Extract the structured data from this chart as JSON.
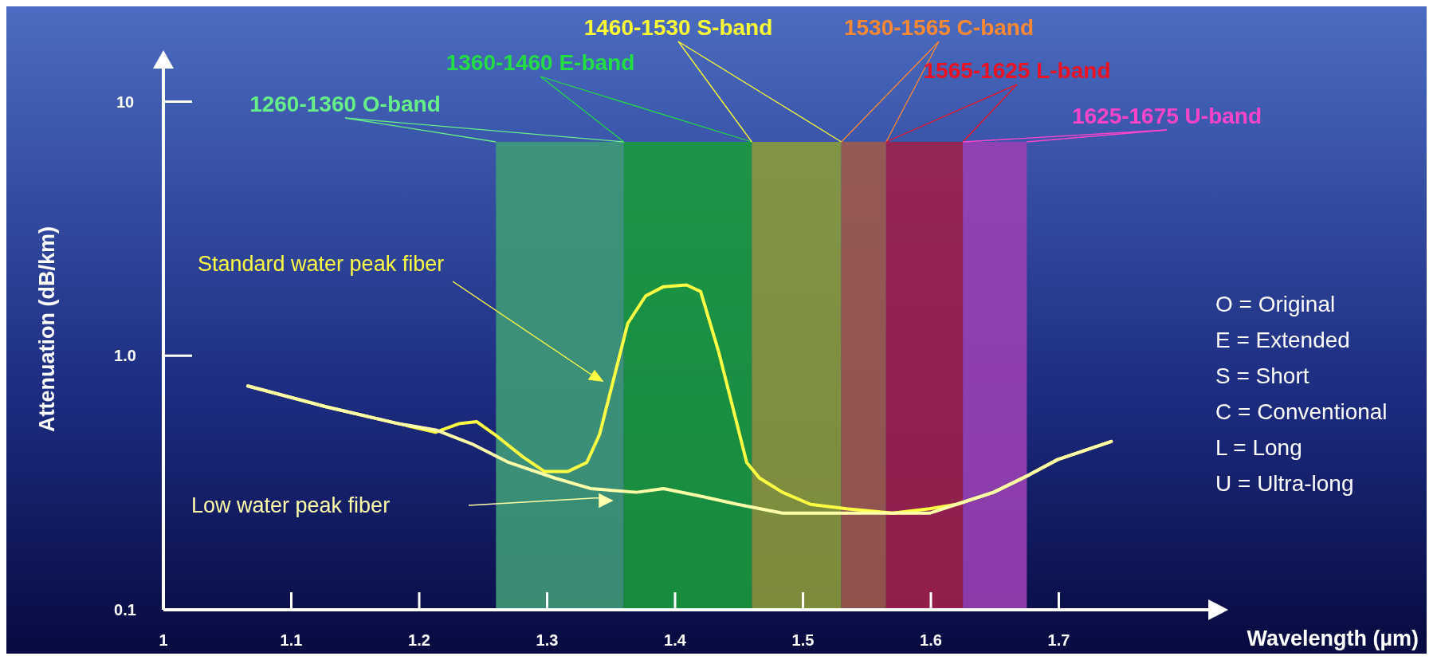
{
  "chart_data": {
    "type": "line",
    "xlabel": "Wavelength (µm)",
    "ylabel": "Attenuation (dB/km)",
    "log": "y",
    "xlim": [
      1,
      1.82
    ],
    "ylim": [
      0.1,
      14
    ],
    "xticks": [
      1,
      1.1,
      1.2,
      1.3,
      1.4,
      1.5,
      1.6,
      1.7
    ],
    "yticks": [
      0.1,
      {
        "value": 1,
        "label": "1.0"
      },
      10
    ],
    "grid": false,
    "line_style": "solid",
    "series": [
      {
        "name": "Standard water peak fiber",
        "color": "#ffff44",
        "x": [
          1.066,
          1.127,
          1.184,
          1.213,
          1.231,
          1.245,
          1.259,
          1.281,
          1.298,
          1.316,
          1.331,
          1.341,
          1.352,
          1.363,
          1.377,
          1.391,
          1.409,
          1.42,
          1.434,
          1.445,
          1.456,
          1.466,
          1.484,
          1.506,
          1.534,
          1.57,
          1.599,
          1.62,
          1.649,
          1.677,
          1.699,
          1.741
        ],
        "values": [
          0.76,
          0.63,
          0.54,
          0.5,
          0.54,
          0.55,
          0.49,
          0.4,
          0.35,
          0.35,
          0.38,
          0.49,
          0.81,
          1.34,
          1.72,
          1.87,
          1.9,
          1.79,
          1.04,
          0.63,
          0.38,
          0.33,
          0.29,
          0.26,
          0.25,
          0.24,
          0.25,
          0.26,
          0.29,
          0.34,
          0.39,
          0.46
        ]
      },
      {
        "name": "Low water peak fiber",
        "color": "#ffffaa",
        "x": [
          1.066,
          1.127,
          1.184,
          1.213,
          1.241,
          1.27,
          1.306,
          1.334,
          1.37,
          1.391,
          1.42,
          1.449,
          1.484,
          1.52,
          1.563,
          1.599,
          1.62,
          1.649,
          1.677,
          1.699,
          1.741
        ],
        "values": [
          0.76,
          0.63,
          0.54,
          0.51,
          0.45,
          0.38,
          0.33,
          0.3,
          0.29,
          0.3,
          0.28,
          0.26,
          0.24,
          0.24,
          0.24,
          0.24,
          0.26,
          0.29,
          0.34,
          0.39,
          0.46
        ]
      }
    ],
    "bands": [
      {
        "axis": "x",
        "from": 1.26,
        "to": 1.36,
        "label": "1260-1360 O-band",
        "color": "#3f9a78"
      },
      {
        "axis": "x",
        "from": 1.36,
        "to": 1.46,
        "label": "1360-1460 E-band",
        "color": "#1a9a3c"
      },
      {
        "axis": "x",
        "from": 1.46,
        "to": 1.53,
        "label": "1460-1530 S-band",
        "color": "#8a9a3a"
      },
      {
        "axis": "x",
        "from": 1.53,
        "to": 1.565,
        "label": "1530-1565 C-band",
        "color": "#a05a4c"
      },
      {
        "axis": "x",
        "from": 1.565,
        "to": 1.625,
        "label": "1565-1625 L-band",
        "color": "#a0204a"
      },
      {
        "axis": "x",
        "from": 1.625,
        "to": 1.675,
        "label": "1625-1675 U-band",
        "color": "#9a40b4"
      }
    ],
    "annotations": [
      "O = Original",
      "E = Extended",
      "S = Short",
      "C = Conventional",
      "L = Long",
      "U = Ultra-long"
    ]
  }
}
